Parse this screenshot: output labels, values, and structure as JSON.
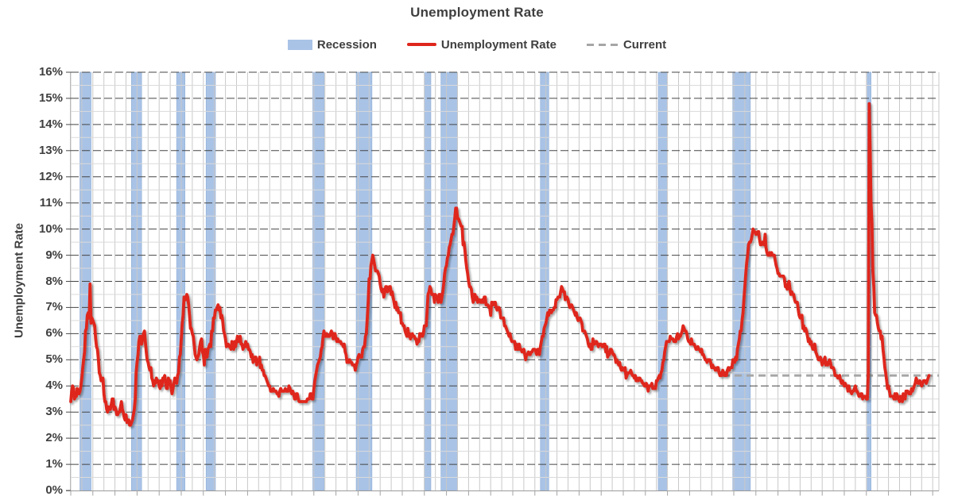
{
  "chart": {
    "title": "Unemployment Rate",
    "legend": [
      {
        "label": "Recession",
        "type": "band-swatch",
        "color": "#a9c3e6"
      },
      {
        "label": "Unemployment Rate",
        "type": "line-swatch",
        "color": "#df261c"
      },
      {
        "label": "Current",
        "type": "dash-swatch",
        "color": "#a6a6a6"
      }
    ]
  },
  "chart_data": {
    "type": "line",
    "title": "Unemployment Rate",
    "ylabel": "Unemployment Rate",
    "unit": "percent",
    "frequency": "monthly",
    "grid": "both",
    "legend_position": "top",
    "y_axis": {
      "min": 0,
      "max": 16,
      "major_step": 1,
      "minor_step": 0.5,
      "tick_labels": [
        "0%",
        "1%",
        "2%",
        "3%",
        "4%",
        "5%",
        "6%",
        "7%",
        "8%",
        "9%",
        "10%",
        "11%",
        "12%",
        "13%",
        "14%",
        "15%",
        "16%"
      ]
    },
    "x_axis": {
      "start_year": 1948,
      "end_year": 2026,
      "gridline_interval_years": 1,
      "tick_interval_years": 2,
      "labels_visible": false
    },
    "current_line": {
      "value": 4.4,
      "starts_at_year": 2007,
      "style": "dashed"
    },
    "recessions": [
      {
        "start": 1948.833,
        "end": 1949.833
      },
      {
        "start": 1953.5,
        "end": 1954.417
      },
      {
        "start": 1957.583,
        "end": 1958.333
      },
      {
        "start": 1960.25,
        "end": 1961.083
      },
      {
        "start": 1969.917,
        "end": 1970.917
      },
      {
        "start": 1973.833,
        "end": 1975.25
      },
      {
        "start": 1980.0,
        "end": 1980.583
      },
      {
        "start": 1981.5,
        "end": 1982.917
      },
      {
        "start": 1990.5,
        "end": 1991.25
      },
      {
        "start": 2001.167,
        "end": 2001.917
      },
      {
        "start": 2007.917,
        "end": 2009.5
      },
      {
        "start": 2020.083,
        "end": 2020.417
      }
    ],
    "series_monthly": {
      "1948": [
        3.4,
        3.8,
        4.0,
        3.9,
        3.5,
        3.6,
        3.6,
        3.9,
        3.8,
        3.7,
        3.8,
        4.0
      ],
      "1949": [
        4.3,
        4.7,
        5.0,
        5.3,
        6.1,
        6.2,
        6.7,
        6.8,
        6.6,
        7.9,
        6.4,
        6.6
      ],
      "1950": [
        6.5,
        6.4,
        6.3,
        5.8,
        5.5,
        5.4,
        5.0,
        4.5,
        4.4,
        4.2,
        4.2,
        4.3
      ],
      "1951": [
        3.7,
        3.4,
        3.4,
        3.1,
        3.0,
        3.2,
        3.1,
        3.1,
        3.3,
        3.5,
        3.5,
        3.1
      ],
      "1952": [
        3.2,
        3.1,
        2.9,
        2.9,
        3.0,
        3.0,
        3.2,
        3.4,
        3.1,
        3.0,
        2.8,
        2.7
      ],
      "1953": [
        2.9,
        2.6,
        2.6,
        2.7,
        2.5,
        2.5,
        2.6,
        2.7,
        2.9,
        3.1,
        3.5,
        4.5
      ],
      "1954": [
        4.9,
        5.2,
        5.7,
        5.9,
        5.9,
        5.6,
        5.8,
        6.0,
        6.1,
        5.7,
        5.3,
        5.0
      ],
      "1955": [
        4.9,
        4.7,
        4.6,
        4.7,
        4.3,
        4.2,
        4.0,
        4.2,
        4.1,
        4.3,
        4.2,
        4.2
      ],
      "1956": [
        4.0,
        3.9,
        4.2,
        4.0,
        4.3,
        4.3,
        4.4,
        4.1,
        3.9,
        3.9,
        4.3,
        4.2
      ],
      "1957": [
        4.2,
        3.9,
        3.7,
        3.9,
        4.1,
        4.3,
        4.2,
        4.1,
        4.4,
        4.5,
        5.1,
        5.2
      ],
      "1958": [
        5.8,
        6.4,
        6.7,
        7.4,
        7.4,
        7.3,
        7.5,
        7.4,
        7.1,
        6.7,
        6.2,
        6.2
      ],
      "1959": [
        6.0,
        5.9,
        5.6,
        5.2,
        5.1,
        5.0,
        5.1,
        5.2,
        5.5,
        5.7,
        5.8,
        5.3
      ],
      "1960": [
        5.2,
        4.8,
        5.4,
        5.2,
        5.1,
        5.4,
        5.5,
        5.6,
        5.5,
        6.1,
        6.1,
        6.6
      ],
      "1961": [
        6.6,
        6.9,
        6.9,
        7.0,
        7.1,
        6.9,
        7.0,
        6.6,
        6.7,
        6.5,
        6.1,
        6.0
      ],
      "1962": [
        5.8,
        5.5,
        5.6,
        5.6,
        5.5,
        5.5,
        5.4,
        5.7,
        5.6,
        5.4,
        5.7,
        5.5
      ],
      "1963": [
        5.7,
        5.9,
        5.7,
        5.7,
        5.9,
        5.6,
        5.6,
        5.4,
        5.5,
        5.5,
        5.7,
        5.5
      ],
      "1964": [
        5.6,
        5.4,
        5.4,
        5.3,
        5.1,
        5.2,
        4.9,
        5.0,
        5.1,
        5.1,
        4.8,
        5.0
      ],
      "1965": [
        4.9,
        5.1,
        4.7,
        4.8,
        4.6,
        4.6,
        4.4,
        4.4,
        4.3,
        4.2,
        4.1,
        4.0
      ],
      "1966": [
        4.0,
        3.8,
        3.8,
        3.8,
        3.9,
        3.8,
        3.8,
        3.8,
        3.7,
        3.7,
        3.6,
        3.8
      ],
      "1967": [
        3.9,
        3.8,
        3.8,
        3.8,
        3.8,
        3.9,
        3.8,
        3.8,
        3.8,
        4.0,
        3.9,
        3.8
      ],
      "1968": [
        3.7,
        3.8,
        3.7,
        3.5,
        3.5,
        3.7,
        3.7,
        3.5,
        3.4,
        3.4,
        3.4,
        3.4
      ],
      "1969": [
        3.4,
        3.4,
        3.4,
        3.4,
        3.4,
        3.5,
        3.5,
        3.5,
        3.7,
        3.7,
        3.5,
        3.5
      ],
      "1970": [
        3.9,
        4.2,
        4.4,
        4.6,
        4.8,
        4.9,
        5.0,
        5.1,
        5.4,
        5.5,
        5.9,
        6.1
      ],
      "1971": [
        5.9,
        5.9,
        6.0,
        5.9,
        5.9,
        5.9,
        6.0,
        6.1,
        6.0,
        5.8,
        6.0,
        6.0
      ],
      "1972": [
        5.8,
        5.7,
        5.8,
        5.7,
        5.7,
        5.7,
        5.6,
        5.6,
        5.5,
        5.6,
        5.3,
        5.2
      ],
      "1973": [
        4.9,
        5.0,
        4.9,
        5.0,
        4.9,
        4.9,
        4.8,
        4.8,
        4.8,
        4.6,
        4.8,
        4.9
      ],
      "1974": [
        5.1,
        5.2,
        5.1,
        5.1,
        5.1,
        5.4,
        5.5,
        5.5,
        5.9,
        6.0,
        6.6,
        7.2
      ],
      "1975": [
        8.1,
        8.1,
        8.6,
        8.8,
        9.0,
        8.8,
        8.6,
        8.4,
        8.4,
        8.4,
        8.3,
        8.2
      ],
      "1976": [
        7.9,
        7.7,
        7.6,
        7.7,
        7.4,
        7.6,
        7.8,
        7.8,
        7.6,
        7.7,
        7.8,
        7.8
      ],
      "1977": [
        7.5,
        7.6,
        7.4,
        7.2,
        7.0,
        7.2,
        6.9,
        7.0,
        6.8,
        6.8,
        6.8,
        6.4
      ],
      "1978": [
        6.4,
        6.3,
        6.3,
        6.1,
        6.0,
        5.9,
        6.2,
        5.9,
        6.0,
        5.8,
        5.9,
        6.0
      ],
      "1979": [
        5.9,
        5.9,
        5.8,
        5.8,
        5.6,
        5.7,
        5.7,
        6.0,
        5.9,
        6.0,
        5.9,
        6.0
      ],
      "1980": [
        6.3,
        6.3,
        6.3,
        6.9,
        7.5,
        7.6,
        7.8,
        7.7,
        7.5,
        7.5,
        7.5,
        7.2
      ],
      "1981": [
        7.5,
        7.4,
        7.4,
        7.2,
        7.5,
        7.5,
        7.2,
        7.4,
        7.6,
        7.9,
        8.3,
        8.5
      ],
      "1982": [
        8.6,
        8.9,
        9.0,
        9.3,
        9.4,
        9.6,
        9.8,
        9.8,
        10.1,
        10.4,
        10.8,
        10.8
      ],
      "1983": [
        10.4,
        10.4,
        10.3,
        10.2,
        10.1,
        10.1,
        9.4,
        9.5,
        9.2,
        8.8,
        8.5,
        8.3
      ],
      "1984": [
        8.0,
        7.8,
        7.8,
        7.7,
        7.4,
        7.2,
        7.5,
        7.5,
        7.3,
        7.4,
        7.2,
        7.3
      ],
      "1985": [
        7.3,
        7.2,
        7.2,
        7.3,
        7.2,
        7.4,
        7.4,
        7.1,
        7.1,
        7.1,
        7.0,
        7.0
      ],
      "1986": [
        6.7,
        7.2,
        7.2,
        7.1,
        7.2,
        7.2,
        7.0,
        6.9,
        7.0,
        7.0,
        6.9,
        6.6
      ],
      "1987": [
        6.6,
        6.6,
        6.6,
        6.3,
        6.3,
        6.2,
        6.1,
        6.0,
        5.9,
        6.0,
        5.8,
        5.7
      ],
      "1988": [
        5.7,
        5.7,
        5.7,
        5.4,
        5.6,
        5.4,
        5.4,
        5.6,
        5.4,
        5.4,
        5.3,
        5.3
      ],
      "1989": [
        5.4,
        5.2,
        5.0,
        5.2,
        5.2,
        5.3,
        5.2,
        5.2,
        5.3,
        5.3,
        5.4,
        5.4
      ],
      "1990": [
        5.4,
        5.3,
        5.2,
        5.4,
        5.4,
        5.2,
        5.5,
        5.7,
        5.9,
        5.9,
        6.2,
        6.3
      ],
      "1991": [
        6.4,
        6.6,
        6.8,
        6.7,
        6.9,
        6.9,
        6.8,
        6.9,
        6.9,
        7.0,
        7.0,
        7.3
      ],
      "1992": [
        7.3,
        7.4,
        7.4,
        7.4,
        7.6,
        7.8,
        7.7,
        7.6,
        7.6,
        7.3,
        7.4,
        7.4
      ],
      "1993": [
        7.3,
        7.1,
        7.0,
        7.1,
        7.1,
        7.0,
        6.9,
        6.8,
        6.7,
        6.8,
        6.6,
        6.5
      ],
      "1994": [
        6.6,
        6.6,
        6.5,
        6.4,
        6.1,
        6.1,
        6.1,
        6.0,
        5.9,
        5.8,
        5.6,
        5.5
      ],
      "1995": [
        5.6,
        5.4,
        5.4,
        5.8,
        5.6,
        5.6,
        5.7,
        5.7,
        5.6,
        5.5,
        5.6,
        5.6
      ],
      "1996": [
        5.6,
        5.5,
        5.5,
        5.6,
        5.6,
        5.3,
        5.5,
        5.1,
        5.2,
        5.2,
        5.4,
        5.4
      ],
      "1997": [
        5.3,
        5.2,
        5.2,
        5.1,
        4.9,
        5.0,
        4.9,
        4.8,
        4.9,
        4.7,
        4.6,
        4.7
      ],
      "1998": [
        4.6,
        4.6,
        4.7,
        4.3,
        4.4,
        4.5,
        4.5,
        4.5,
        4.6,
        4.5,
        4.4,
        4.4
      ],
      "1999": [
        4.3,
        4.4,
        4.2,
        4.3,
        4.2,
        4.3,
        4.3,
        4.2,
        4.2,
        4.1,
        4.1,
        4.0
      ],
      "2000": [
        4.0,
        4.1,
        4.0,
        3.8,
        4.0,
        4.0,
        4.0,
        4.1,
        3.9,
        3.9,
        3.9,
        3.9
      ],
      "2001": [
        4.2,
        4.2,
        4.3,
        4.4,
        4.3,
        4.5,
        4.6,
        4.9,
        5.0,
        5.3,
        5.5,
        5.7
      ],
      "2002": [
        5.7,
        5.7,
        5.7,
        5.9,
        5.8,
        5.8,
        5.8,
        5.7,
        5.7,
        5.7,
        5.9,
        6.0
      ],
      "2003": [
        5.8,
        5.9,
        5.9,
        6.0,
        6.1,
        6.3,
        6.2,
        6.1,
        6.1,
        6.0,
        5.8,
        5.7
      ],
      "2004": [
        5.7,
        5.6,
        5.8,
        5.6,
        5.6,
        5.6,
        5.5,
        5.4,
        5.4,
        5.5,
        5.4,
        5.4
      ],
      "2005": [
        5.3,
        5.4,
        5.2,
        5.2,
        5.1,
        5.0,
        5.0,
        4.9,
        5.0,
        5.0,
        5.0,
        4.9
      ],
      "2006": [
        4.7,
        4.8,
        4.7,
        4.7,
        4.6,
        4.6,
        4.7,
        4.7,
        4.5,
        4.4,
        4.5,
        4.4
      ],
      "2007": [
        4.6,
        4.5,
        4.4,
        4.5,
        4.4,
        4.6,
        4.7,
        4.6,
        4.7,
        4.7,
        4.7,
        5.0
      ],
      "2008": [
        5.0,
        4.9,
        5.1,
        5.0,
        5.4,
        5.6,
        5.8,
        6.1,
        6.1,
        6.5,
        6.8,
        7.3
      ],
      "2009": [
        7.8,
        8.3,
        8.7,
        9.0,
        9.4,
        9.5,
        9.5,
        9.6,
        9.8,
        10.0,
        9.9,
        9.9
      ],
      "2010": [
        9.8,
        9.8,
        9.9,
        9.9,
        9.6,
        9.4,
        9.4,
        9.5,
        9.5,
        9.4,
        9.8,
        9.3
      ],
      "2011": [
        9.1,
        9.0,
        9.0,
        9.1,
        9.0,
        9.1,
        9.0,
        9.0,
        9.0,
        8.8,
        8.6,
        8.5
      ],
      "2012": [
        8.3,
        8.3,
        8.2,
        8.2,
        8.2,
        8.2,
        8.2,
        8.1,
        7.8,
        7.8,
        7.7,
        7.9
      ],
      "2013": [
        8.0,
        7.7,
        7.5,
        7.6,
        7.5,
        7.5,
        7.3,
        7.2,
        7.2,
        7.2,
        6.9,
        6.7
      ],
      "2014": [
        6.6,
        6.7,
        6.7,
        6.2,
        6.3,
        6.1,
        6.2,
        6.1,
        5.9,
        5.7,
        5.8,
        5.6
      ],
      "2015": [
        5.7,
        5.5,
        5.4,
        5.4,
        5.6,
        5.3,
        5.2,
        5.1,
        5.0,
        5.0,
        5.1,
        5.0
      ],
      "2016": [
        4.8,
        4.9,
        5.0,
        5.1,
        4.8,
        4.9,
        4.8,
        4.9,
        5.0,
        4.9,
        4.7,
        4.7
      ],
      "2017": [
        4.7,
        4.6,
        4.4,
        4.4,
        4.4,
        4.3,
        4.3,
        4.4,
        4.2,
        4.1,
        4.2,
        4.1
      ],
      "2018": [
        4.0,
        4.1,
        4.0,
        4.0,
        3.8,
        4.0,
        3.8,
        3.8,
        3.7,
        3.8,
        3.8,
        3.9
      ],
      "2019": [
        4.0,
        3.8,
        3.8,
        3.7,
        3.6,
        3.6,
        3.7,
        3.7,
        3.5,
        3.6,
        3.6,
        3.6
      ],
      "2020": [
        3.5,
        3.5,
        4.4,
        14.8,
        13.2,
        11.0,
        10.2,
        8.4,
        7.8,
        6.8,
        6.7,
        6.7
      ],
      "2021": [
        6.4,
        6.2,
        6.1,
        6.1,
        5.8,
        5.9,
        5.4,
        5.1,
        4.7,
        4.5,
        4.2,
        3.9
      ],
      "2022": [
        4.0,
        3.8,
        3.6,
        3.6,
        3.6,
        3.6,
        3.5,
        3.7,
        3.5,
        3.7,
        3.6,
        3.5
      ],
      "2023": [
        3.4,
        3.6,
        3.5,
        3.4,
        3.7,
        3.6,
        3.5,
        3.8,
        3.8,
        3.8,
        3.7,
        3.7
      ],
      "2024": [
        3.7,
        3.9,
        3.8,
        3.9,
        4.0,
        4.1,
        4.3,
        4.2,
        4.1,
        4.1,
        4.2,
        4.1
      ],
      "2025": [
        4.0,
        4.1,
        4.2,
        4.2,
        4.2,
        4.1,
        4.2,
        4.3,
        4.4
      ]
    },
    "colors": {
      "line": "#df261c",
      "recession_band": "#a9c3e6",
      "band_edge": "#97b4da",
      "current": "#a6a6a6",
      "grid_major_h": "#454545",
      "grid_minor_h": "#dadada",
      "grid_vertical": "#c9c9c9",
      "axis_left": "#b9b9b9",
      "axis_bottom": "#9b9b9b",
      "tick": "#4a4a4a",
      "tick_bottom": "#a3a3a3",
      "text": "#3f3f3f"
    }
  }
}
